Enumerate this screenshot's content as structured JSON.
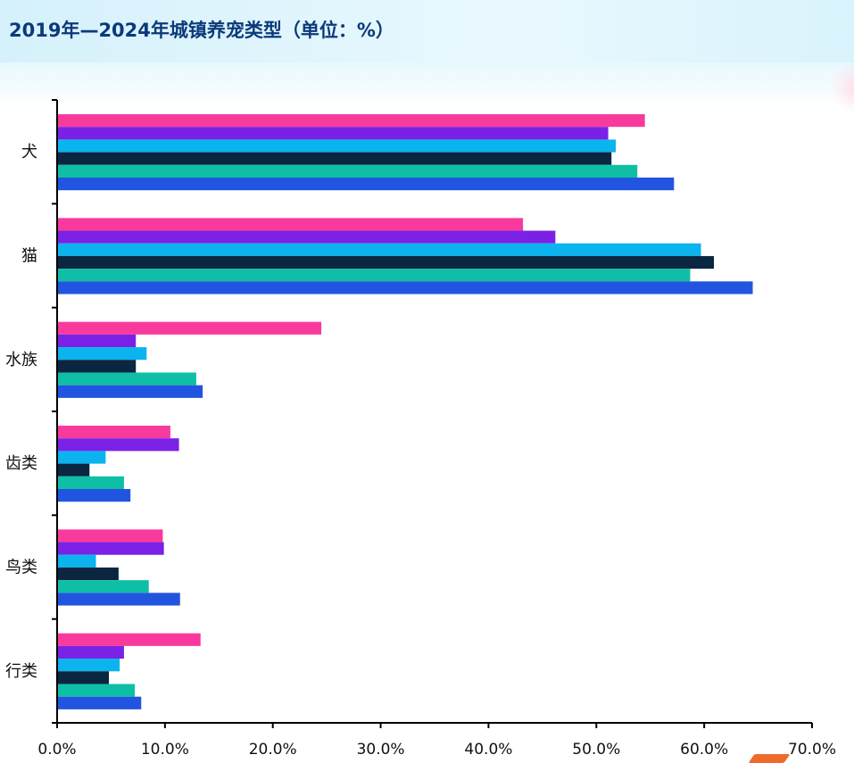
{
  "title": "2019年—2024年城镇养宠类型（单位：%）",
  "colors": {
    "title": "#0b3a7a",
    "axis": "#000000",
    "series": [
      "#f93a9d",
      "#7b21e6",
      "#0bb4ee",
      "#0b2640",
      "#0ebfa6",
      "#2255df"
    ]
  },
  "chart_data": {
    "type": "bar",
    "orientation": "horizontal",
    "categories": [
      "犬",
      "猫",
      "水族",
      "齿类",
      "鸟类",
      "行类"
    ],
    "series": [
      {
        "values": [
          54.5,
          43.2,
          24.5,
          10.5,
          9.8,
          13.3
        ]
      },
      {
        "values": [
          51.1,
          46.2,
          7.3,
          11.3,
          9.9,
          6.2
        ]
      },
      {
        "values": [
          51.8,
          59.7,
          8.3,
          4.5,
          3.6,
          5.8
        ]
      },
      {
        "values": [
          51.4,
          60.9,
          7.3,
          3.0,
          5.7,
          4.8
        ]
      },
      {
        "values": [
          53.8,
          58.7,
          12.9,
          6.2,
          8.5,
          7.2
        ]
      },
      {
        "values": [
          57.2,
          64.5,
          13.5,
          6.8,
          11.4,
          7.8
        ]
      }
    ],
    "xlim": [
      0,
      70
    ],
    "x_ticks": [
      "0.0%",
      "10.0%",
      "20.0%",
      "30.0%",
      "40.0%",
      "50.0%",
      "60.0%",
      "70.0%"
    ],
    "x_tick_values": [
      0,
      10,
      20,
      30,
      40,
      50,
      60,
      70
    ],
    "grid": false,
    "legend": "none"
  }
}
